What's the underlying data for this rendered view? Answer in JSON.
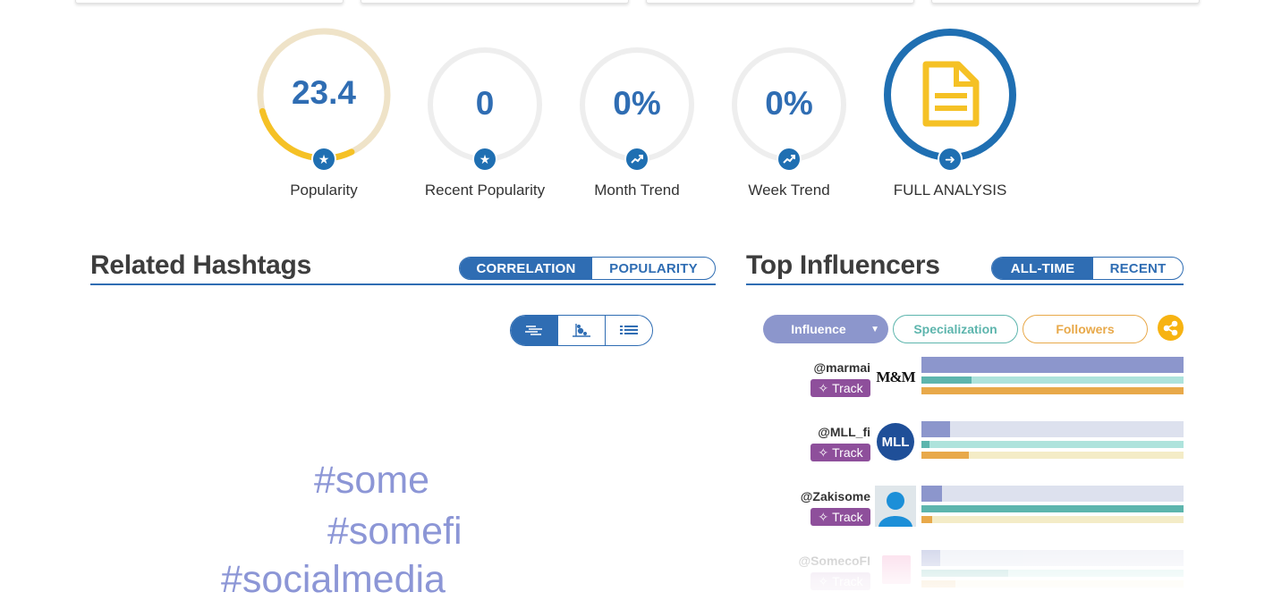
{
  "stats": [
    {
      "value": "23.4",
      "label": "Popularity",
      "icon": "star-icon",
      "progress": 0.28
    },
    {
      "value": "0",
      "label": "Recent Popularity",
      "icon": "star-icon",
      "progress": 0
    },
    {
      "value": "0%",
      "label": "Month Trend",
      "icon": "trend-up-icon",
      "progress": 0
    },
    {
      "value": "0%",
      "label": "Week Trend",
      "icon": "trend-up-icon",
      "progress": 0
    }
  ],
  "full_analysis": {
    "label": "FULL ANALYSIS",
    "icon": "document-icon"
  },
  "hashtags_section": {
    "title": "Related Hashtags",
    "tabs": [
      "CORRELATION",
      "POPULARITY"
    ],
    "active_tab": "CORRELATION",
    "view_icons": [
      "cloud-view-icon",
      "scatter-view-icon",
      "list-view-icon"
    ],
    "tags": [
      "#some",
      "#somefi",
      "#socialmedia"
    ]
  },
  "influencers_section": {
    "title": "Top Influencers",
    "tabs": [
      "ALL-TIME",
      "RECENT"
    ],
    "active_tab": "ALL-TIME",
    "sort_pills": [
      "Influence",
      "Specialization",
      "Followers"
    ],
    "track_label": "Track",
    "items": [
      {
        "name": "@marmai",
        "avatar": "M&M",
        "influence": 1.0,
        "specialization": 0.19,
        "followers": 1.0
      },
      {
        "name": "@MLL_fi",
        "avatar": "MLL",
        "influence": 0.11,
        "specialization": 0.03,
        "followers": 0.18
      },
      {
        "name": "@Zakisome",
        "avatar": "",
        "influence": 0.08,
        "specialization": 1.0,
        "followers": 0.04
      },
      {
        "name": "@SomecoFI",
        "avatar": "",
        "influence": 0.07,
        "specialization": 0.33,
        "followers": 0.13
      }
    ]
  },
  "colors": {
    "primary": "#2f6db3",
    "popularity_ring": "#f5c125",
    "popularity_track": "#efe3c8",
    "influence": "#8c96cc",
    "specialization": "#5db5ad",
    "followers": "#e8a94a",
    "track_button": "#8e4f9b",
    "share": "#f7b312"
  }
}
